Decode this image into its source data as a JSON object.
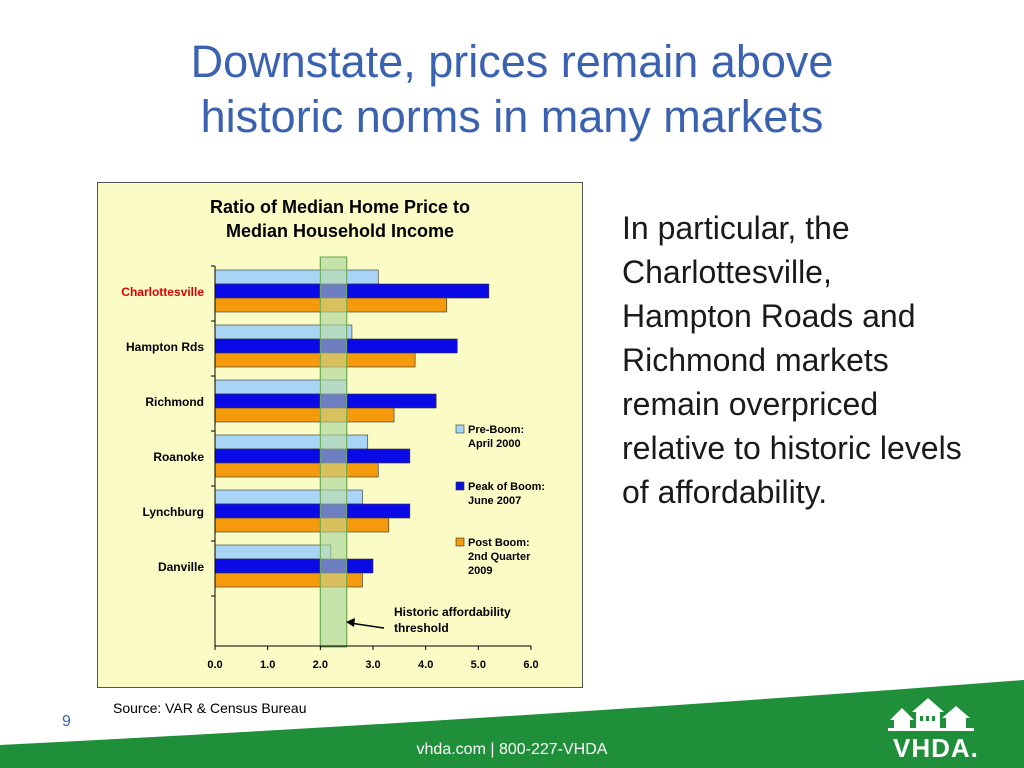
{
  "slide": {
    "title_line1": "Downstate, prices remain above",
    "title_line2": "historic norms in many markets",
    "bullet": "In particular, the Charlottesville, Hampton Roads and Richmond markets remain overpriced relative to historic levels of affordability.",
    "source": "Source:  VAR  & Census Bureau",
    "slide_number": "9",
    "footer": "vhda.com | 800-227-VHDA",
    "logo_text": "VHDA.",
    "colors": {
      "title": "#3a62b0",
      "footer_green": "#1f8f3a",
      "chart_bg": "#fbfbc6"
    }
  },
  "chart_data": {
    "type": "bar",
    "orientation": "horizontal",
    "title_line1": "Ratio of Median Home Price to",
    "title_line2": "Median Household Income",
    "categories": [
      "Charlottesville",
      "Hampton Rds",
      "Richmond",
      "Roanoke",
      "Lynchburg",
      "Danville"
    ],
    "highlight_category": "Charlottesville",
    "series": [
      {
        "name": "Pre-Boom: April 2000",
        "legend_lines": [
          "Pre-Boom:",
          "April 2000"
        ],
        "color": "#a8d4f5",
        "values": [
          3.1,
          2.6,
          2.5,
          2.9,
          2.8,
          2.2
        ]
      },
      {
        "name": "Peak of Boom: June 2007",
        "legend_lines": [
          "Peak of Boom:",
          "June 2007"
        ],
        "color": "#0a0ae6",
        "values": [
          5.2,
          4.6,
          4.2,
          3.7,
          3.7,
          3.0
        ]
      },
      {
        "name": "Post Boom: 2nd Quarter 2009",
        "legend_lines": [
          "Post Boom:",
          "2nd Quarter",
          "2009"
        ],
        "color": "#f59a0c",
        "values": [
          4.4,
          3.8,
          3.4,
          3.1,
          3.3,
          2.8
        ]
      }
    ],
    "xlim": [
      0,
      6
    ],
    "xticks": [
      "0.0",
      "1.0",
      "2.0",
      "3.0",
      "4.0",
      "5.0",
      "6.0"
    ],
    "threshold": {
      "from": 2.0,
      "to": 2.5
    },
    "annotation_lines": [
      "Historic affordability",
      "threshold"
    ],
    "legend_position": "right"
  }
}
